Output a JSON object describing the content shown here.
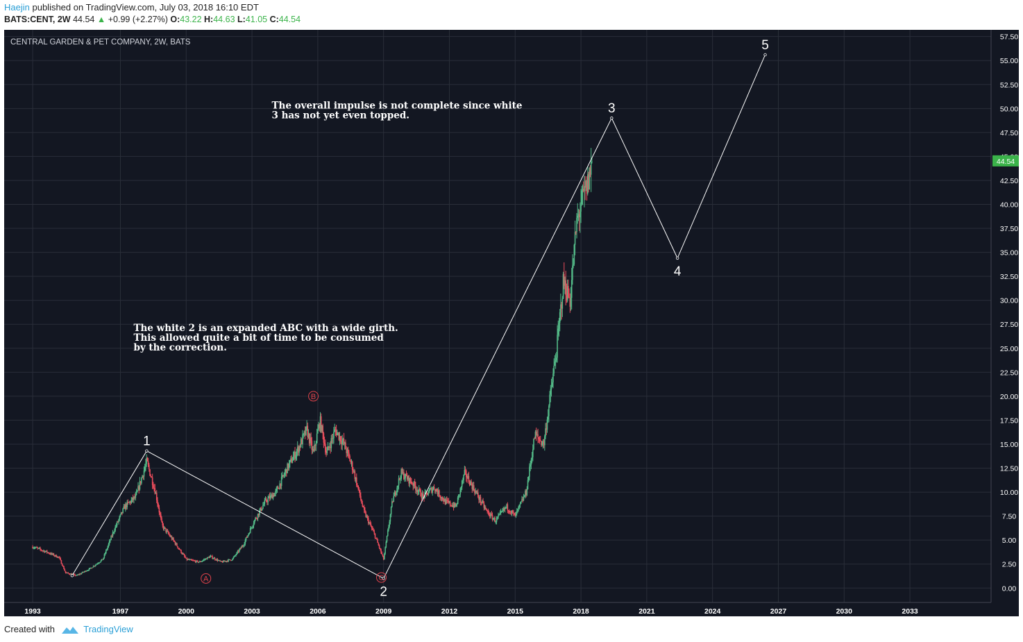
{
  "header": {
    "author": "Haejin",
    "published_text": "published on TradingView.com, July 03, 2018 16:10 EDT",
    "symbol": "BATS:CENT, 2W",
    "last": "44.54",
    "change": "+0.99 (+2.27%)",
    "o_label": "O:",
    "o_value": "43.22",
    "h_label": "H:",
    "h_value": "44.63",
    "l_label": "L:",
    "l_value": "41.05",
    "c_label": "C:",
    "c_value": "44.54"
  },
  "footer": {
    "created_with": "Created with",
    "brand": "TradingView"
  },
  "colors": {
    "background": "#131722",
    "grid": "#2a2e39",
    "up": "#53b987",
    "down": "#eb4d5c",
    "axis_text": "#ffffff",
    "annotation": "#ffffff",
    "abc": "#e0434b",
    "price_badge": "#3bb34a"
  },
  "chart_data": {
    "type": "candlestick",
    "title": "CENTRAL GARDEN & PET COMPANY, 2W, BATS",
    "x_ticks": [
      "1993",
      "1997",
      "2000",
      "2003",
      "2006",
      "2009",
      "2012",
      "2015",
      "2018",
      "2021",
      "2024",
      "2027",
      "2030",
      "2033"
    ],
    "x_tick_values": [
      1993,
      1997,
      2000,
      2003,
      2006,
      2009,
      2012,
      2015,
      2018,
      2021,
      2024,
      2027,
      2030,
      2033
    ],
    "x_range": [
      1991.7,
      2036.7
    ],
    "y_ticks": [
      "0.00",
      "2.50",
      "5.00",
      "7.50",
      "10.00",
      "12.50",
      "15.00",
      "17.50",
      "20.00",
      "22.50",
      "25.00",
      "27.50",
      "30.00",
      "32.50",
      "35.00",
      "37.50",
      "40.00",
      "42.50",
      "45.00",
      "47.50",
      "50.00",
      "52.50",
      "55.00",
      "57.50"
    ],
    "y_range": [
      -1.5,
      58.2
    ],
    "last_price": "44.54",
    "price_path": [
      [
        1993.0,
        4.3
      ],
      [
        1993.6,
        3.8
      ],
      [
        1994.2,
        3.2
      ],
      [
        1994.5,
        1.6
      ],
      [
        1995.0,
        1.3
      ],
      [
        1995.6,
        2.0
      ],
      [
        1996.2,
        3.0
      ],
      [
        1996.7,
        6.0
      ],
      [
        1997.2,
        8.5
      ],
      [
        1997.7,
        9.5
      ],
      [
        1998.2,
        13.2
      ],
      [
        1998.6,
        10.0
      ],
      [
        1998.9,
        6.5
      ],
      [
        1999.4,
        5.0
      ],
      [
        2000.0,
        3.0
      ],
      [
        2000.6,
        2.7
      ],
      [
        2001.1,
        3.3
      ],
      [
        2001.6,
        2.7
      ],
      [
        2002.1,
        3.0
      ],
      [
        2002.6,
        4.5
      ],
      [
        2003.1,
        7.0
      ],
      [
        2003.6,
        9.0
      ],
      [
        2004.1,
        10.0
      ],
      [
        2004.6,
        12.5
      ],
      [
        2005.1,
        14.5
      ],
      [
        2005.5,
        16.5
      ],
      [
        2005.8,
        14.0
      ],
      [
        2006.1,
        17.5
      ],
      [
        2006.4,
        14.0
      ],
      [
        2006.8,
        16.5
      ],
      [
        2007.2,
        15.0
      ],
      [
        2007.6,
        12.5
      ],
      [
        2008.1,
        8.0
      ],
      [
        2008.6,
        5.5
      ],
      [
        2009.0,
        3.0
      ],
      [
        2009.4,
        9.0
      ],
      [
        2009.8,
        12.0
      ],
      [
        2010.3,
        11.0
      ],
      [
        2010.8,
        9.5
      ],
      [
        2011.3,
        10.5
      ],
      [
        2011.8,
        9.0
      ],
      [
        2012.3,
        8.5
      ],
      [
        2012.7,
        12.0
      ],
      [
        2013.2,
        10.0
      ],
      [
        2013.7,
        8.0
      ],
      [
        2014.1,
        7.0
      ],
      [
        2014.6,
        8.5
      ],
      [
        2015.0,
        7.5
      ],
      [
        2015.5,
        10.0
      ],
      [
        2015.9,
        16.0
      ],
      [
        2016.3,
        15.0
      ],
      [
        2016.6,
        20.0
      ],
      [
        2016.9,
        25.0
      ],
      [
        2017.2,
        32.0
      ],
      [
        2017.5,
        30.0
      ],
      [
        2017.8,
        38.0
      ],
      [
        2018.0,
        40.0
      ],
      [
        2018.3,
        42.0
      ],
      [
        2018.5,
        44.54
      ]
    ],
    "wave_points": [
      [
        1994.8,
        1.3
      ],
      [
        1998.2,
        14.3
      ],
      [
        2009.0,
        1.0
      ],
      [
        2019.4,
        49.0
      ],
      [
        2022.4,
        34.4
      ],
      [
        2026.4,
        55.6
      ]
    ],
    "wave_labels": [
      {
        "text": "1",
        "x": 1998.2,
        "y": 14.3,
        "pos": "above"
      },
      {
        "text": "2",
        "x": 2009.0,
        "y": 1.0,
        "pos": "below"
      },
      {
        "text": "3",
        "x": 2019.4,
        "y": 49.0,
        "pos": "above"
      },
      {
        "text": "4",
        "x": 2022.4,
        "y": 34.4,
        "pos": "below"
      },
      {
        "text": "5",
        "x": 2026.4,
        "y": 55.6,
        "pos": "above"
      }
    ],
    "abc_labels": [
      {
        "text": "A",
        "x": 2000.9,
        "y": 1.0
      },
      {
        "text": "B",
        "x": 2005.8,
        "y": 20.0
      },
      {
        "text": "C",
        "x": 2008.9,
        "y": 1.1
      }
    ],
    "annotations": [
      {
        "lines": [
          "The overall impulse is not complete since white",
          "3 has not yet even topped."
        ],
        "x": 2003.9,
        "y": 50.0
      },
      {
        "lines": [
          "The white 2 is an expanded ABC with a wide girth.",
          "This allowed quite a bit of time to be consumed",
          "by the correction."
        ],
        "x": 1997.6,
        "y": 26.8
      }
    ]
  }
}
